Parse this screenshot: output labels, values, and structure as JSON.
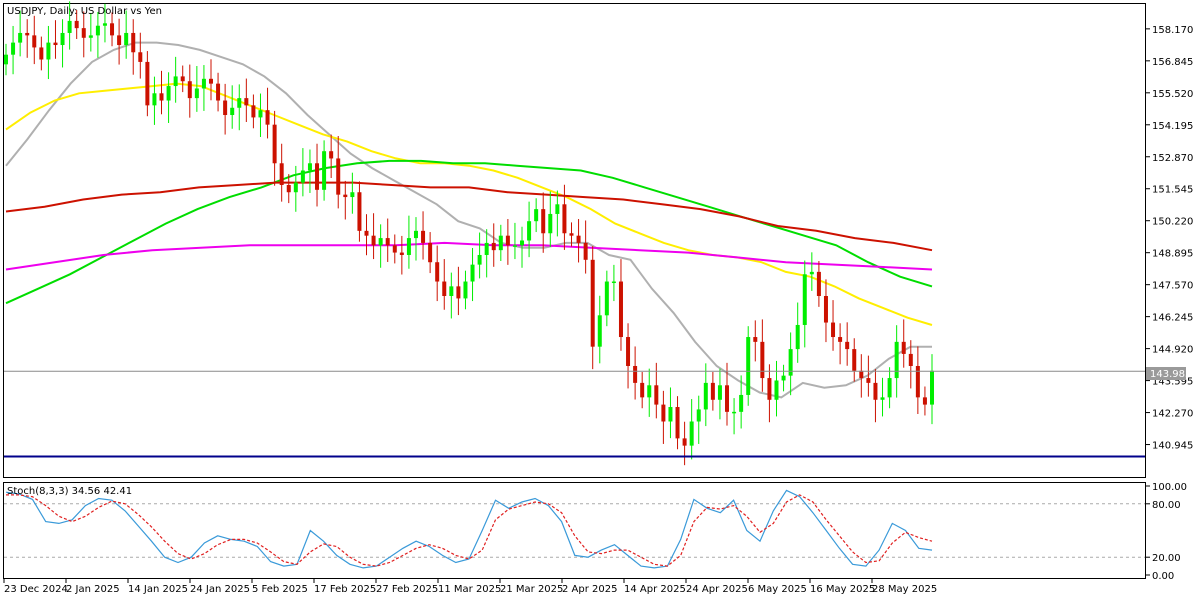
{
  "chart_data": [
    {
      "type": "candlestick",
      "title": "USDJPY, Daily:  US Dollar vs Yen",
      "ylim": [
        139.6,
        159.2
      ],
      "y_ticks": [
        "158.170",
        "156.845",
        "155.520",
        "154.195",
        "152.870",
        "151.545",
        "150.220",
        "148.895",
        "147.570",
        "146.245",
        "144.920",
        "143.595",
        "142.270",
        "140.945"
      ],
      "x_ticks": [
        "23 Dec 2024",
        "2 Jan 2025",
        "14 Jan 2025",
        "24 Jan 2025",
        "5 Feb 2025",
        "17 Feb 2025",
        "27 Feb 2025",
        "11 Mar 2025",
        "21 Mar 2025",
        "2 Apr 2025",
        "14 Apr 2025",
        "24 Apr 2025",
        "6 May 2025",
        "16 May 2025",
        "28 May 2025"
      ],
      "current_price": "143.983",
      "horizontal_level": 140.45,
      "bull_color": "#00ee00",
      "bear_color": "#cc1100",
      "grid": false,
      "ohlc_closes": [
        157.1,
        157.6,
        158.0,
        157.9,
        157.4,
        156.9,
        157.6,
        157.5,
        158.0,
        158.5,
        158.2,
        157.8,
        157.9,
        158.3,
        158.4,
        157.9,
        157.5,
        158.0,
        157.2,
        156.8,
        155.0,
        155.5,
        155.2,
        155.8,
        156.2,
        156.0,
        155.3,
        155.7,
        156.1,
        155.9,
        155.2,
        154.6,
        154.9,
        155.3,
        155.0,
        154.5,
        154.8,
        154.2,
        152.6,
        151.7,
        151.4,
        151.8,
        152.3,
        152.6,
        151.5,
        153.1,
        152.8,
        151.3,
        151.2,
        151.4,
        149.8,
        149.6,
        149.2,
        149.5,
        149.2,
        148.9,
        148.8,
        149.5,
        149.8,
        149.3,
        148.5,
        147.7,
        147.1,
        147.5,
        147.0,
        147.7,
        148.4,
        148.8,
        149.3,
        149.0,
        149.6,
        149.2,
        149.2,
        149.4,
        150.2,
        150.7,
        149.7,
        150.5,
        150.9,
        149.7,
        149.6,
        149.3,
        148.6,
        145.0,
        146.3,
        147.7,
        147.7,
        145.4,
        144.2,
        143.5,
        142.9,
        143.4,
        142.6,
        141.9,
        142.5,
        141.2,
        140.9,
        141.9,
        142.4,
        143.5,
        142.8,
        143.4,
        142.3,
        142.3,
        143.0,
        145.4,
        145.2,
        143.7,
        142.8,
        143.6,
        143.8,
        144.9,
        145.9,
        148.0,
        148.1,
        147.1,
        146.0,
        145.4,
        145.2,
        144.9,
        144.0,
        143.7,
        143.5,
        142.8,
        142.9,
        143.7,
        145.2,
        144.7,
        144.2,
        142.9,
        142.6,
        144.0
      ],
      "ma": [
        {
          "color": "#b0b0b0",
          "values": [
            152.5,
            153.6,
            154.8,
            155.9,
            156.8,
            157.3,
            157.6,
            157.6,
            157.5,
            157.3,
            157.0,
            156.7,
            156.2,
            155.5,
            154.6,
            153.8,
            153.0,
            152.4,
            151.9,
            151.4,
            150.9,
            150.2,
            149.9,
            149.3,
            149.1,
            149.1,
            149.3,
            149.3,
            148.8,
            148.6,
            147.4,
            146.4,
            145.2,
            144.2,
            143.6,
            143.1,
            142.9,
            143.5,
            143.3,
            143.4,
            143.8,
            144.5,
            145.0,
            145.0
          ]
        },
        {
          "color": "#ffee00",
          "values": [
            154.0,
            154.7,
            155.2,
            155.5,
            155.6,
            155.7,
            155.8,
            155.9,
            155.8,
            155.4,
            155.0,
            154.6,
            154.2,
            153.8,
            153.5,
            153.1,
            152.8,
            152.6,
            152.6,
            152.5,
            152.3,
            152.0,
            151.6,
            151.2,
            150.7,
            150.1,
            149.7,
            149.3,
            149.0,
            148.8,
            148.7,
            148.5,
            148.1,
            147.9,
            147.5,
            147.0,
            146.6,
            146.2,
            145.9
          ]
        },
        {
          "color": "#00dd00",
          "values": [
            146.8,
            147.4,
            148.0,
            148.7,
            149.4,
            150.1,
            150.7,
            151.2,
            151.6,
            152.1,
            152.4,
            152.6,
            152.7,
            152.7,
            152.6,
            152.6,
            152.5,
            152.4,
            152.3,
            152.0,
            151.6,
            151.2,
            150.8,
            150.4,
            150.0,
            149.6,
            149.2,
            148.5,
            147.9,
            147.5
          ]
        },
        {
          "color": "#cc1100",
          "values": [
            150.6,
            150.8,
            151.1,
            151.3,
            151.4,
            151.6,
            151.7,
            151.8,
            151.8,
            151.8,
            151.7,
            151.6,
            151.6,
            151.4,
            151.3,
            151.2,
            151.1,
            150.9,
            150.7,
            150.4,
            150.0,
            149.8,
            149.5,
            149.3,
            149.0
          ]
        },
        {
          "color": "#ee00ee",
          "values": [
            148.2,
            148.5,
            148.8,
            149.0,
            149.1,
            149.2,
            149.2,
            149.2,
            149.2,
            149.3,
            149.2,
            149.2,
            149.1,
            149.0,
            148.9,
            148.7,
            148.5,
            148.4,
            148.3,
            148.2
          ]
        }
      ]
    },
    {
      "type": "line",
      "title": "Stoch(8,3,3) 34.56 42.41",
      "ylim": [
        0,
        100
      ],
      "y_ticks": [
        "100.00",
        "80.00",
        "20.00",
        "0.00"
      ],
      "levels": [
        80,
        20
      ],
      "series": [
        {
          "color": "#3a9ad9",
          "values": [
            93,
            91,
            85,
            60,
            58,
            62,
            78,
            86,
            84,
            72,
            55,
            38,
            20,
            14,
            20,
            36,
            44,
            40,
            38,
            32,
            15,
            10,
            12,
            50,
            38,
            22,
            12,
            8,
            10,
            20,
            30,
            38,
            32,
            22,
            14,
            18,
            50,
            84,
            75,
            82,
            86,
            78,
            60,
            22,
            20,
            28,
            34,
            22,
            10,
            8,
            10,
            40,
            85,
            75,
            70,
            84,
            50,
            38,
            72,
            95,
            88,
            70,
            50,
            30,
            12,
            10,
            28,
            58,
            50,
            30,
            28
          ]
        },
        {
          "color": "#e02020",
          "linestyle": "dashed",
          "values": [
            90,
            90,
            88,
            78,
            66,
            60,
            66,
            76,
            83,
            80,
            68,
            54,
            38,
            24,
            18,
            24,
            34,
            40,
            40,
            36,
            26,
            15,
            12,
            26,
            35,
            32,
            20,
            12,
            10,
            14,
            22,
            30,
            34,
            30,
            22,
            18,
            28,
            62,
            74,
            78,
            82,
            80,
            70,
            44,
            26,
            24,
            28,
            28,
            20,
            12,
            10,
            22,
            60,
            76,
            74,
            78,
            66,
            48,
            58,
            82,
            90,
            82,
            62,
            44,
            26,
            14,
            16,
            36,
            48,
            42,
            38
          ]
        }
      ]
    }
  ]
}
